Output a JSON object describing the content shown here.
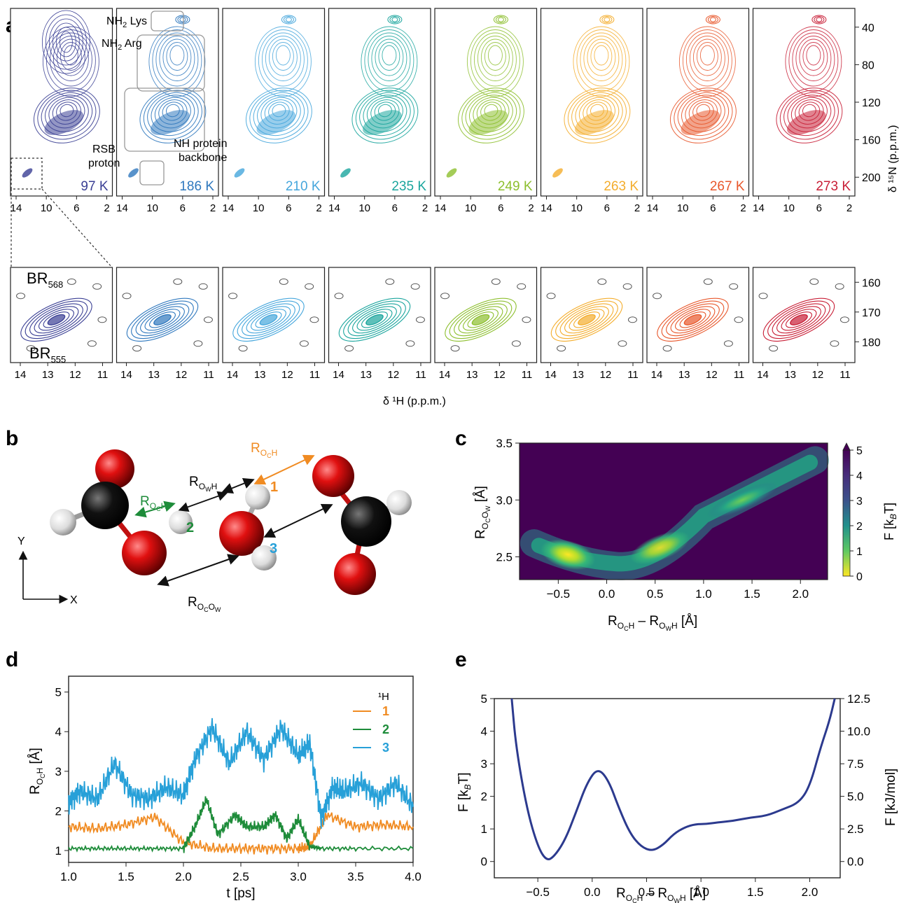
{
  "panel_labels": {
    "a": "a",
    "b": "b",
    "c": "c",
    "d": "d",
    "e": "e"
  },
  "panel_a": {
    "temps": [
      {
        "label": "97 K",
        "color": "#3a3f94"
      },
      {
        "label": "186 K",
        "color": "#2f78be"
      },
      {
        "label": "210 K",
        "color": "#45a6dc"
      },
      {
        "label": "235 K",
        "color": "#1aa59d"
      },
      {
        "label": "249 K",
        "color": "#8dbf2e"
      },
      {
        "label": "263 K",
        "color": "#f4ad2c"
      },
      {
        "label": "267 K",
        "color": "#e8572b"
      },
      {
        "label": "273 K",
        "color": "#c81d35"
      }
    ],
    "top_x_ticks": [
      "14",
      "10",
      "6",
      "2"
    ],
    "top_y_ticks": [
      "40",
      "80",
      "120",
      "160",
      "200"
    ],
    "top_y_label": "δ ¹⁵N (p.p.m.)",
    "bottom_x_ticks": [
      "14",
      "13",
      "12",
      "11"
    ],
    "bottom_y_ticks": [
      "160",
      "170",
      "180"
    ],
    "x_label": "δ ¹H (p.p.m.)",
    "annotations": {
      "nh2_lys": "NH",
      "nh2_lys_sub": "2",
      "nh2_lys_rest": " Lys",
      "nh2_arg": "NH",
      "nh2_arg_sub": "2",
      "nh2_arg_rest": " Arg",
      "rsb_1": "RSB",
      "rsb_2": "proton",
      "nh_1": "NH protein",
      "nh_2": "backbone",
      "br568": "BR",
      "br568_sub": "568",
      "br555": "BR",
      "br555_sub": "555"
    }
  },
  "panel_b": {
    "r_och_top": "R",
    "r_och_top_sub": "O",
    "r_och_top_subsub": "C",
    "r_och_top_h": "H",
    "r_owh": "R",
    "r_owh_sub": "O",
    "r_owh_subsub": "W",
    "r_owh_h": "H",
    "r_och_green": "R",
    "r_och_green_sub": "O",
    "r_och_green_subsub": "C",
    "r_och_green_h": "H",
    "r_ocow": "R",
    "r_ocow_sub": "O",
    "r_ocow_subsub": "C",
    "r_ocow_o": "O",
    "r_ocow_w": "W",
    "h1": "1",
    "h2": "2",
    "h3": "3",
    "axis_y": "Y",
    "axis_x": "X",
    "colors": {
      "orange": "#f08b22",
      "green": "#1e8c3a",
      "blue": "#27a0d8"
    }
  },
  "panel_c": {
    "x_ticks": [
      "−0.5",
      "0.0",
      "0.5",
      "1.0",
      "1.5",
      "2.0"
    ],
    "y_ticks": [
      "2.5",
      "3.0",
      "3.5"
    ],
    "cbar_ticks": [
      "0",
      "1",
      "2",
      "3",
      "4",
      "5"
    ],
    "cbar_label": "F [k",
    "cbar_label_sub": "B",
    "cbar_label_end": "T]",
    "y_label": "R",
    "x_label": "R",
    "x_label_mid": " – R",
    "x_label_end": " [Å]",
    "y_label_end": " [Å]"
  },
  "panel_d": {
    "x_ticks": [
      "1.0",
      "1.5",
      "2.0",
      "2.5",
      "3.0",
      "3.5",
      "4.0"
    ],
    "y_ticks": [
      "1",
      "2",
      "3",
      "4",
      "5"
    ],
    "x_label": "t [ps]",
    "y_label": "R",
    "y_label_end": " [Å]",
    "legend_title": "¹H",
    "legend": [
      {
        "name": "1",
        "color": "#f08b22"
      },
      {
        "name": "2",
        "color": "#1e8c3a"
      },
      {
        "name": "3",
        "color": "#27a0d8"
      }
    ]
  },
  "panel_e": {
    "x_ticks": [
      "−0.5",
      "0.0",
      "0.5",
      "1.0",
      "1.5",
      "2.0"
    ],
    "y_ticks": [
      "0",
      "1",
      "2",
      "3",
      "4",
      "5"
    ],
    "y2_ticks": [
      "0.0",
      "2.5",
      "5.0",
      "7.5",
      "10.0",
      "12.5"
    ],
    "y_label": "F [k",
    "y_label_sub": "B",
    "y_label_end": "T]",
    "y2_label": "F [kJ/mol]",
    "x_label": "R",
    "x_label_mid": " – R",
    "x_label_end": " [Å]"
  },
  "chart_data": [
    {
      "type": "line",
      "panel": "d",
      "xlabel": "t [ps]",
      "xlim": [
        1.0,
        4.0
      ],
      "ylim": [
        0.7,
        5.4
      ],
      "series": [
        {
          "name": "1",
          "x": [
            1.0,
            1.25,
            1.5,
            1.75,
            2.0,
            2.25,
            2.5,
            2.75,
            3.0,
            3.1,
            3.25,
            3.5,
            3.75,
            4.0
          ],
          "values": [
            1.6,
            1.55,
            1.65,
            1.85,
            1.2,
            1.05,
            1.05,
            1.05,
            1.05,
            1.1,
            1.9,
            1.6,
            1.65,
            1.6
          ]
        },
        {
          "name": "2",
          "x": [
            1.0,
            1.25,
            1.5,
            1.75,
            2.0,
            2.1,
            2.2,
            2.3,
            2.45,
            2.55,
            2.7,
            2.8,
            2.9,
            3.0,
            3.1,
            3.2,
            3.5,
            4.0
          ],
          "values": [
            1.05,
            1.05,
            1.05,
            1.05,
            1.05,
            1.6,
            2.3,
            1.4,
            1.9,
            1.6,
            1.6,
            1.9,
            1.3,
            1.8,
            1.1,
            1.05,
            1.05,
            1.05
          ]
        },
        {
          "name": "3",
          "x": [
            1.0,
            1.1,
            1.25,
            1.4,
            1.55,
            1.7,
            1.85,
            2.0,
            2.1,
            2.25,
            2.4,
            2.55,
            2.7,
            2.85,
            3.0,
            3.1,
            3.2,
            3.3,
            3.4,
            3.55,
            3.7,
            3.85,
            4.0
          ],
          "values": [
            2.2,
            2.5,
            2.3,
            3.2,
            2.4,
            2.3,
            2.6,
            2.4,
            3.3,
            4.1,
            3.2,
            4.0,
            3.3,
            4.1,
            3.4,
            3.7,
            1.8,
            2.6,
            2.5,
            2.7,
            2.3,
            2.7,
            2.1
          ]
        }
      ]
    },
    {
      "type": "line",
      "panel": "e",
      "xlim": [
        -0.9,
        2.28
      ],
      "ylim": [
        -0.5,
        5.0
      ],
      "series": [
        {
          "x": [
            -0.74,
            -0.7,
            -0.6,
            -0.5,
            -0.42,
            -0.35,
            -0.25,
            -0.15,
            -0.05,
            0.05,
            0.15,
            0.25,
            0.35,
            0.45,
            0.55,
            0.65,
            0.75,
            0.85,
            0.95,
            1.05,
            1.15,
            1.3,
            1.45,
            1.6,
            1.75,
            1.9,
            2.0,
            2.1,
            2.18,
            2.23
          ],
          "values": [
            5.0,
            3.5,
            1.6,
            0.45,
            0.02,
            0.15,
            0.65,
            1.5,
            2.4,
            2.88,
            2.5,
            1.6,
            0.85,
            0.45,
            0.32,
            0.5,
            0.85,
            1.05,
            1.15,
            1.15,
            1.2,
            1.25,
            1.35,
            1.4,
            1.6,
            1.8,
            2.3,
            3.5,
            4.3,
            5.0
          ]
        }
      ]
    },
    {
      "type": "heatmap",
      "panel": "c",
      "xlim": [
        -0.9,
        2.28
      ],
      "ylim": [
        2.3,
        3.5
      ],
      "colorbar_range": [
        0,
        5
      ]
    }
  ]
}
